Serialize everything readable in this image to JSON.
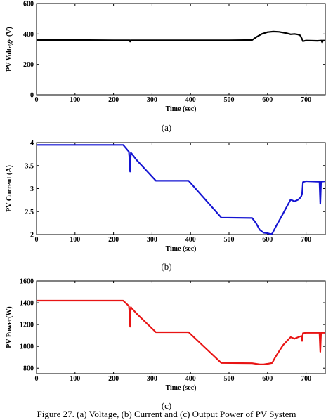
{
  "caption": "Figure 27. (a) Voltage, (b) Current and (c) Output Power of PV System",
  "chart_data": [
    {
      "panel_label": "(a)",
      "type": "line",
      "xlabel": "Time (sec)",
      "ylabel": "PV Voltage (V)",
      "xlim": [
        0,
        750
      ],
      "ylim": [
        0,
        600
      ],
      "xticks": [
        0,
        100,
        200,
        300,
        400,
        500,
        600,
        700
      ],
      "yticks": [
        0,
        200,
        400,
        600
      ],
      "xtick_labels": [
        "0",
        "100",
        "200",
        "300",
        "400",
        "500",
        "600",
        "700"
      ],
      "ytick_labels": [
        "0",
        "200",
        "400",
        "600"
      ],
      "color": "#000000",
      "series": [
        {
          "x": [
            0,
            100,
            200,
            242,
            243,
            244,
            245,
            300,
            400,
            500,
            560,
            570,
            585,
            600,
            615,
            630,
            650,
            660,
            670,
            680,
            685,
            690,
            692,
            700,
            730,
            740,
            742,
            744,
            750
          ],
          "y": [
            360,
            360,
            358,
            358,
            350,
            358,
            358,
            358,
            358,
            358,
            360,
            378,
            400,
            412,
            416,
            414,
            405,
            398,
            400,
            396,
            390,
            365,
            352,
            357,
            355,
            357,
            345,
            357,
            357
          ]
        }
      ]
    },
    {
      "panel_label": "(b)",
      "type": "line",
      "xlabel": "Time (sec)",
      "ylabel": "PV Current (A)",
      "xlim": [
        0,
        750
      ],
      "ylim": [
        2,
        4
      ],
      "xticks": [
        0,
        100,
        200,
        300,
        400,
        500,
        600,
        700
      ],
      "yticks": [
        2,
        2.5,
        3,
        3.5,
        4
      ],
      "xtick_labels": [
        "0",
        "100",
        "200",
        "300",
        "400",
        "500",
        "600",
        "700"
      ],
      "ytick_labels": [
        "2",
        "2.5",
        "3",
        "3.5",
        "4"
      ],
      "color": "#1414d2",
      "series": [
        {
          "x": [
            0,
            100,
            225,
            240,
            242,
            243,
            244,
            245,
            247,
            260,
            310,
            395,
            480,
            560,
            570,
            580,
            590,
            600,
            608,
            612,
            620,
            640,
            660,
            670,
            680,
            685,
            688,
            690,
            692,
            700,
            730,
            735,
            737,
            739,
            741,
            750
          ],
          "y": [
            3.95,
            3.95,
            3.95,
            3.8,
            3.6,
            3.37,
            3.6,
            3.78,
            3.76,
            3.62,
            3.17,
            3.17,
            2.37,
            2.36,
            2.25,
            2.1,
            2.04,
            2.03,
            2.01,
            2.02,
            2.15,
            2.45,
            2.76,
            2.72,
            2.76,
            2.8,
            2.84,
            2.9,
            3.14,
            3.16,
            3.15,
            3.15,
            2.67,
            3.15,
            3.15,
            3.16
          ]
        }
      ]
    },
    {
      "panel_label": "(c)",
      "type": "line",
      "xlabel": "Time (sec)",
      "ylabel": "PV Power(W)",
      "xlim": [
        0,
        750
      ],
      "ylim": [
        750,
        1600
      ],
      "xticks": [
        0,
        100,
        200,
        300,
        400,
        500,
        600,
        700
      ],
      "yticks": [
        800,
        1000,
        1200,
        1400,
        1600
      ],
      "xtick_labels": [
        "0",
        "100",
        "200",
        "300",
        "400",
        "500",
        "600",
        "700"
      ],
      "ytick_labels": [
        "800",
        "1000",
        "1200",
        "1400",
        "1600"
      ],
      "color": "#e81414",
      "series": [
        {
          "x": [
            0,
            100,
            225,
            240,
            242,
            243,
            244,
            245,
            247,
            260,
            310,
            395,
            480,
            560,
            580,
            590,
            600,
            612,
            620,
            640,
            660,
            670,
            680,
            688,
            690,
            692,
            700,
            730,
            735,
            737,
            739,
            741,
            750
          ],
          "y": [
            1420,
            1420,
            1420,
            1370,
            1300,
            1180,
            1300,
            1360,
            1350,
            1300,
            1130,
            1130,
            848,
            845,
            835,
            835,
            840,
            848,
            900,
            1010,
            1085,
            1070,
            1085,
            1095,
            1050,
            1120,
            1125,
            1125,
            1125,
            950,
            1125,
            1125,
            1125
          ]
        }
      ]
    }
  ]
}
